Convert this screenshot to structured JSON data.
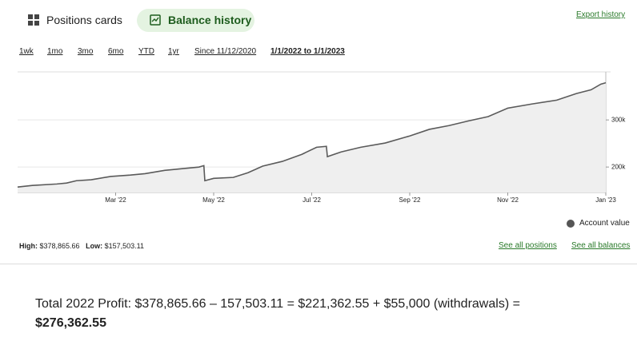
{
  "tabs": [
    "Positions cards",
    "Balance history"
  ],
  "export": "Export history",
  "ranges": [
    "1wk",
    "1mo",
    "3mo",
    "6mo",
    "YTD",
    "1yr",
    "Since 11/12/2020",
    "1/1/2022 to 1/1/2023"
  ],
  "chart_data": {
    "type": "area",
    "x": [
      0,
      0.3,
      0.8,
      1.0,
      1.2,
      1.5,
      1.9,
      2.3,
      2.6,
      3.0,
      3.4,
      3.7,
      3.8,
      3.82,
      4.0,
      4.4,
      4.7,
      5.0,
      5.4,
      5.8,
      6.1,
      6.3,
      6.32,
      6.6,
      7.0,
      7.5,
      8.0,
      8.4,
      8.8,
      9.2,
      9.6,
      10.0,
      10.5,
      11.0,
      11.4,
      11.7,
      11.9,
      12.0
    ],
    "series": [
      {
        "name": "Account value",
        "color": "#5a5a5a",
        "fill": "#efefef",
        "values": [
          157503.11,
          161000,
          164000,
          166000,
          171000,
          173000,
          180000,
          183000,
          186000,
          193000,
          197000,
          200000,
          203000,
          171000,
          176000,
          178000,
          188000,
          202000,
          212000,
          227000,
          242000,
          244000,
          222000,
          232000,
          242000,
          251000,
          266000,
          280000,
          288000,
          298000,
          307000,
          325000,
          334000,
          342000,
          356000,
          364000,
          376000,
          378865.66
        ]
      }
    ],
    "xlim": [
      0,
      12
    ],
    "xticks": [
      {
        "value": 2,
        "label": "Mar '22"
      },
      {
        "value": 4,
        "label": "May '22"
      },
      {
        "value": 6,
        "label": "Jul '22"
      },
      {
        "value": 8,
        "label": "Sep '22"
      },
      {
        "value": 10,
        "label": "Nov '22"
      },
      {
        "value": 12,
        "label": "Jan '23"
      }
    ],
    "ylim": [
      146000,
      402000
    ],
    "yticks": [
      {
        "value": 200000,
        "label": "200k"
      },
      {
        "value": 300000,
        "label": "300k"
      }
    ],
    "grid": true
  },
  "stats": {
    "high_label": "High:",
    "high": "$378,865.66",
    "low_label": "Low:",
    "low": "$157,503.11"
  },
  "links": [
    "See all positions",
    "See all balances"
  ],
  "summary": {
    "text": "Total 2022 Profit: $378,865.66 – 157,503.11 = $221,362.55 + $55,000 (withdrawals) =",
    "total": "$276,362.55"
  }
}
